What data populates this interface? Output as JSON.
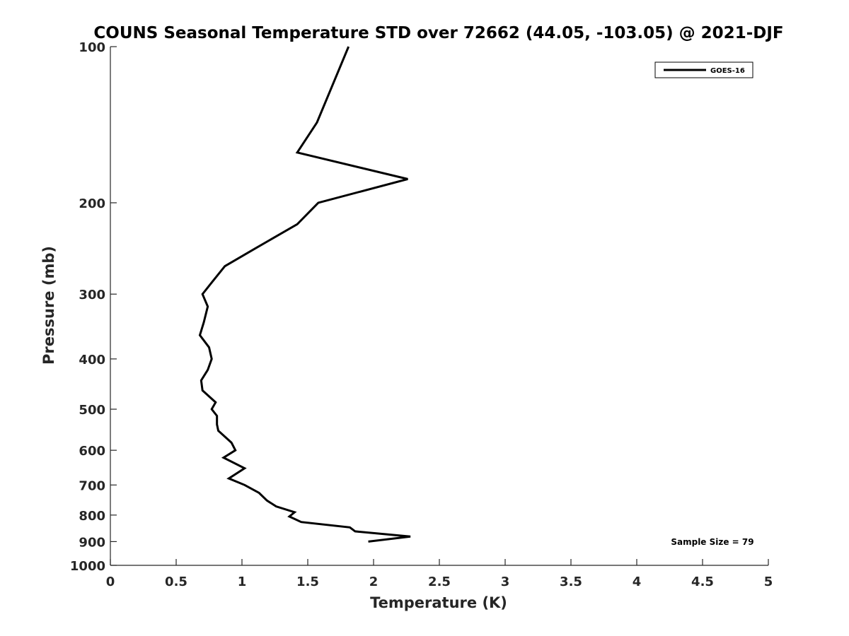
{
  "chart_data": {
    "type": "line",
    "title": "COUNS Seasonal Temperature STD over 72662 (44.05, -103.05) @ 2021-DJF",
    "xlabel": "Temperature (K)",
    "ylabel": "Pressure (mb)",
    "xlim": [
      0,
      5
    ],
    "ylim": [
      100,
      1000
    ],
    "y_scale": "log",
    "y_reversed": true,
    "x_ticks": [
      "0",
      "0.5",
      "1",
      "1.5",
      "2",
      "2.5",
      "3",
      "3.5",
      "4",
      "4.5",
      "5"
    ],
    "y_ticks": [
      "100",
      "200",
      "300",
      "400",
      "500",
      "600",
      "700",
      "800",
      "900",
      "1000"
    ],
    "grid": false,
    "legend_position": "top-right",
    "annotation": "Sample Size = 79",
    "series": [
      {
        "name": "GOES-16",
        "color": "#000000",
        "points": [
          [
            1.81,
            100
          ],
          [
            1.57,
            140
          ],
          [
            1.42,
            160
          ],
          [
            2.26,
            180
          ],
          [
            1.58,
            200
          ],
          [
            1.42,
            220
          ],
          [
            1.1,
            245
          ],
          [
            0.87,
            265
          ],
          [
            0.77,
            285
          ],
          [
            0.7,
            300
          ],
          [
            0.74,
            317
          ],
          [
            0.71,
            340
          ],
          [
            0.68,
            360
          ],
          [
            0.75,
            380
          ],
          [
            0.77,
            400
          ],
          [
            0.74,
            420
          ],
          [
            0.69,
            440
          ],
          [
            0.7,
            460
          ],
          [
            0.8,
            485
          ],
          [
            0.77,
            500
          ],
          [
            0.81,
            515
          ],
          [
            0.81,
            535
          ],
          [
            0.82,
            550
          ],
          [
            0.92,
            580
          ],
          [
            0.95,
            600
          ],
          [
            0.86,
            620
          ],
          [
            1.02,
            650
          ],
          [
            0.9,
            680
          ],
          [
            1.02,
            700
          ],
          [
            1.13,
            725
          ],
          [
            1.19,
            750
          ],
          [
            1.26,
            770
          ],
          [
            1.4,
            790
          ],
          [
            1.36,
            805
          ],
          [
            1.45,
            825
          ],
          [
            1.82,
            845
          ],
          [
            1.86,
            860
          ],
          [
            2.28,
            880
          ],
          [
            1.96,
            900
          ]
        ]
      }
    ]
  }
}
